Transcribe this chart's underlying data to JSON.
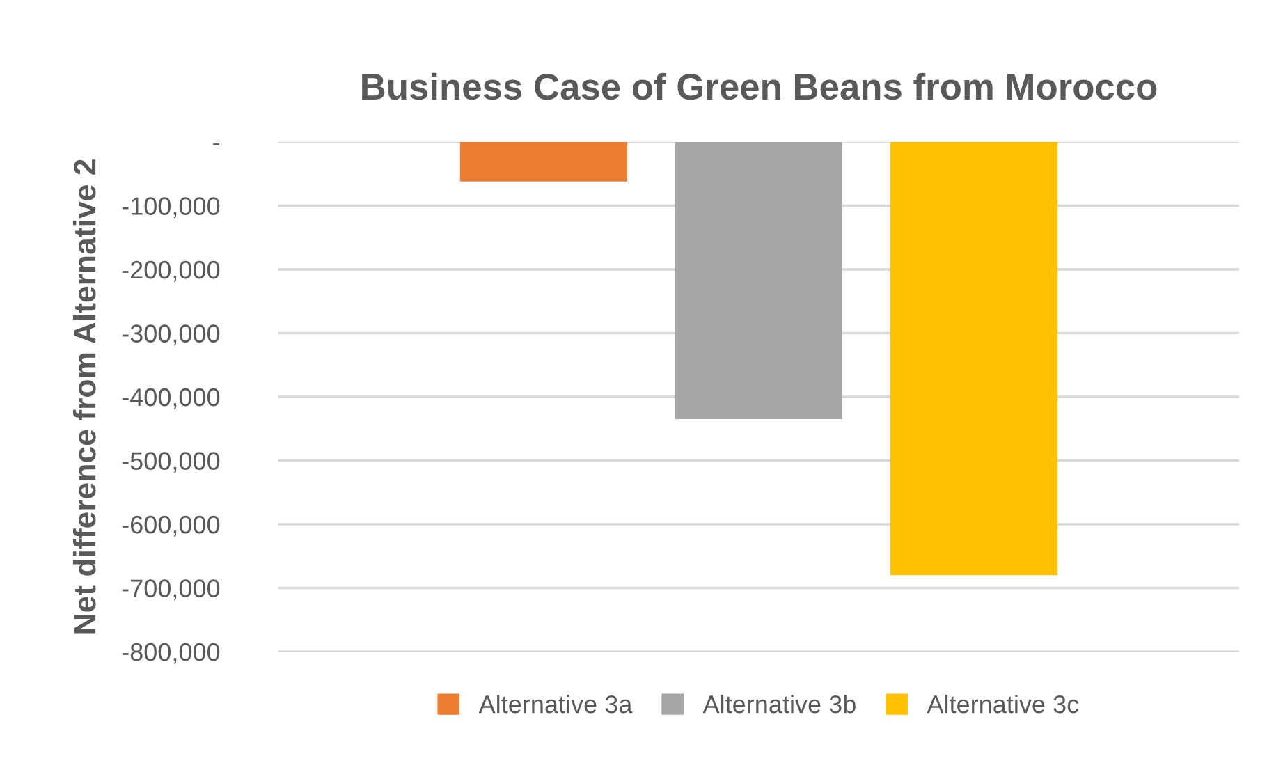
{
  "chart_data": {
    "type": "bar",
    "title": "Business Case of Green Beans from Morocco",
    "ylabel": "Net difference from Alternative 2",
    "categories": [
      null
    ],
    "series": [
      {
        "name": "Alternative 3a",
        "color": "#ed7d31",
        "values": [
          -62000
        ]
      },
      {
        "name": "Alternative 3b",
        "color": "#a5a5a5",
        "values": [
          -435000
        ]
      },
      {
        "name": "Alternative 3c",
        "color": "#ffc000",
        "values": [
          -680000
        ]
      }
    ],
    "ylim": [
      -800000,
      0
    ],
    "yticks": [
      {
        "value": -800000,
        "label": "-800,000"
      },
      {
        "value": -700000,
        "label": "-700,000"
      },
      {
        "value": -600000,
        "label": "-600,000"
      },
      {
        "value": -500000,
        "label": "-500,000"
      },
      {
        "value": -400000,
        "label": "-400,000"
      },
      {
        "value": -300000,
        "label": "-300,000"
      },
      {
        "value": -200000,
        "label": "-200,000"
      },
      {
        "value": -100000,
        "label": "-100,000"
      },
      {
        "value": 0,
        "label": "-"
      }
    ],
    "grid": "y",
    "legend": "bottom"
  }
}
